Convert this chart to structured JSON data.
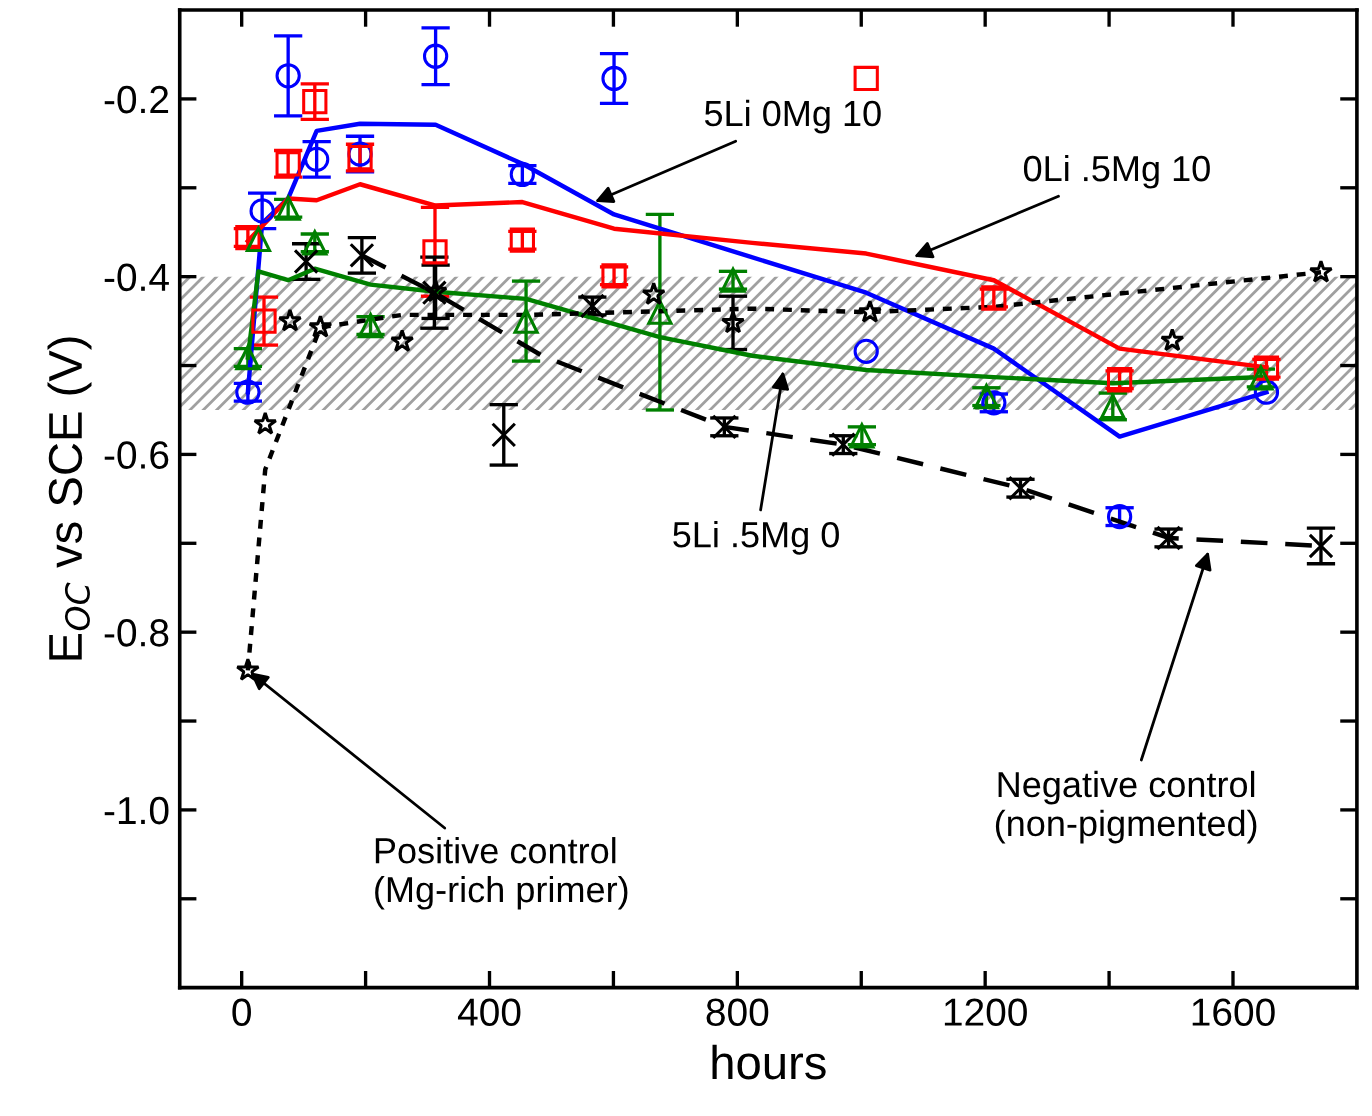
{
  "chart_data": {
    "type": "scatter",
    "xlabel": "hours",
    "ylabel": "E$_{OC}$ vs SCE (V)",
    "xlim": [
      -100,
      1800
    ],
    "ylim": [
      -1.2,
      -0.1
    ],
    "xticks": [
      0,
      {
        "value": 200,
        "label": null
      },
      400,
      {
        "value": 600,
        "label": null
      },
      800,
      {
        "value": 1000,
        "label": null
      },
      1200,
      {
        "value": 1400,
        "label": null
      },
      1600
    ],
    "yticks": [
      {
        "value": -1.1,
        "label": null
      },
      {
        "value": -1.0,
        "label": "-1.0"
      },
      {
        "value": -0.9,
        "label": null
      },
      -0.8,
      {
        "value": -0.7,
        "label": null
      },
      -0.6,
      {
        "value": -0.5,
        "label": null
      },
      -0.4,
      {
        "value": -0.3,
        "label": null
      },
      -0.2
    ],
    "grid": false,
    "legend": false,
    "bands": [
      {
        "axis": "y",
        "from": -0.55,
        "to": -0.4,
        "color": "#a0a0a0"
      }
    ],
    "series": [
      {
        "color": "#0000ff",
        "marker": "circle",
        "x": [
          10,
          33,
          75,
          121,
          191,
          313,
          453,
          601,
          1008,
          1214,
          1417,
          1654
        ],
        "values": [
          -0.53,
          -0.326,
          -0.174,
          -0.268,
          -0.262,
          -0.152,
          -0.285,
          -0.177,
          -0.484,
          -0.542,
          -0.67,
          -0.53
        ],
        "errors": [
          0.01,
          0.02,
          0.045,
          0.02,
          0.02,
          0.032,
          0.01,
          0.028,
          null,
          0.01,
          0.01,
          null
        ]
      },
      {
        "color": "#ff0000",
        "marker": "square",
        "x": [
          10,
          36,
          75,
          118,
          191,
          312,
          453,
          601,
          1008,
          1214,
          1417,
          1654
        ],
        "values": [
          -0.356,
          -0.45,
          -0.273,
          -0.203,
          -0.266,
          -0.372,
          -0.359,
          -0.399,
          -0.177,
          -0.424,
          -0.516,
          -0.503
        ],
        "errors": [
          0.01,
          0.027,
          0.015,
          0.02,
          0.015,
          0.05,
          0.01,
          0.01,
          null,
          0.01,
          0.01,
          0.01
        ]
      },
      {
        "color": "#008000",
        "marker": "triangle",
        "x": [
          10,
          27,
          75,
          118,
          208,
          459,
          675,
          793,
          1001,
          1202,
          1406,
          1645
        ],
        "values": [
          -0.491,
          -0.358,
          -0.323,
          -0.362,
          -0.455,
          -0.45,
          -0.44,
          -0.404,
          -0.579,
          -0.535,
          -0.546,
          -0.514
        ],
        "errors": [
          0.01,
          null,
          0.01,
          0.01,
          0.01,
          0.045,
          0.11,
          0.01,
          0.01,
          0.01,
          0.015,
          0.01
        ]
      },
      {
        "color": "#000000",
        "marker": "star",
        "x": [
          10,
          38,
          78,
          127,
          259,
          313,
          665,
          793,
          1014,
          1502,
          1742
        ],
        "values": [
          -0.843,
          -0.566,
          -0.45,
          -0.457,
          -0.473,
          -0.417,
          -0.42,
          -0.452,
          -0.44,
          -0.472,
          -0.395
        ],
        "errors": [
          null,
          null,
          null,
          null,
          null,
          0.03,
          null,
          0.03,
          null,
          null,
          null
        ]
      },
      {
        "color": "#000000",
        "marker": "cross",
        "x": [
          104,
          194,
          311,
          423,
          566,
          779,
          971,
          1257,
          1496,
          1742
        ],
        "values": [
          -0.383,
          -0.376,
          -0.418,
          -0.578,
          -0.433,
          -0.569,
          -0.589,
          -0.638,
          -0.694,
          -0.703
        ],
        "errors": [
          0.02,
          0.02,
          0.04,
          0.034,
          0.01,
          0.01,
          0.01,
          0.01,
          0.01,
          0.02
        ]
      },
      {
        "type": "line",
        "color": "#0000ff",
        "line_style": "solid",
        "x": [
          10,
          33,
          75,
          121,
          191,
          313,
          453,
          601,
          1008,
          1214,
          1417,
          1654
        ],
        "values": [
          -0.53,
          -0.34,
          -0.312,
          -0.236,
          -0.228,
          -0.229,
          -0.273,
          -0.33,
          -0.418,
          -0.481,
          -0.58,
          -0.53
        ]
      },
      {
        "type": "line",
        "color": "#ff0000",
        "line_style": "solid",
        "x": [
          10,
          75,
          121,
          191,
          313,
          453,
          601,
          824,
          1008,
          1214,
          1417,
          1654
        ],
        "values": [
          -0.36,
          -0.312,
          -0.314,
          -0.296,
          -0.32,
          -0.316,
          -0.346,
          -0.362,
          -0.374,
          -0.404,
          -0.481,
          -0.502
        ]
      },
      {
        "type": "line",
        "color": "#008000",
        "line_style": "solid",
        "x": [
          10,
          27,
          75,
          118,
          208,
          313,
          459,
          675,
          824,
          1008,
          1214,
          1406,
          1645
        ],
        "values": [
          -0.491,
          -0.394,
          -0.404,
          -0.391,
          -0.409,
          -0.417,
          -0.425,
          -0.468,
          -0.489,
          -0.505,
          -0.513,
          -0.52,
          -0.513
        ]
      },
      {
        "type": "line",
        "color": "#000000",
        "line_style": "dotted",
        "x": [
          10,
          38,
          127,
          259,
          464,
          824,
          1008,
          1214,
          1742
        ],
        "values": [
          -0.843,
          -0.617,
          -0.457,
          -0.443,
          -0.443,
          -0.436,
          -0.44,
          -0.434,
          -0.395
        ]
      },
      {
        "type": "line",
        "color": "#000000",
        "line_style": "dashed",
        "x": [
          194,
          311,
          485,
          779,
          971,
          1257,
          1496,
          1742
        ],
        "values": [
          -0.376,
          -0.418,
          -0.489,
          -0.569,
          -0.589,
          -0.638,
          -0.694,
          -0.703
        ]
      }
    ],
    "annotations": [
      {
        "text": "5Li 0Mg 10",
        "x": 566,
        "y": -0.317
      },
      {
        "text": "0Li .5Mg 10",
        "x": 1081,
        "y": -0.379
      },
      {
        "text": "5Li .5Mg 0",
        "x": 875,
        "y": -0.503
      },
      {
        "text": "Negative control\n(non-pigmented)",
        "x": 1562,
        "y": -0.706
      },
      {
        "text": "Positive control\n(Mg-rich primer)",
        "x": 10,
        "y": -0.843
      }
    ]
  }
}
